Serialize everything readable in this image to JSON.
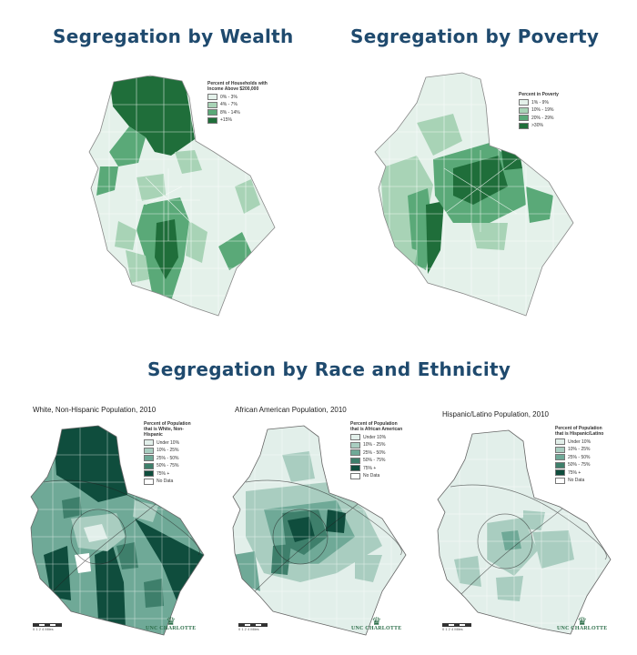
{
  "titles": {
    "wealth": "Segregation by Wealth",
    "poverty": "Segregation by Poverty",
    "race": "Segregation by Race and Ethnicity"
  },
  "colors": {
    "c1": "#e4f1ea",
    "c2": "#a8d3b6",
    "c3": "#5aa978",
    "c4": "#1f6e3a",
    "t1": "#e2efea",
    "t2": "#a9cdc0",
    "t3": "#6fa997",
    "t4": "#3e7f6b",
    "t5": "#0f4d3d",
    "nodata": "#ffffff",
    "title": "#1f4a6e",
    "logo": "#2c6e49"
  },
  "wealth_map": {
    "legend_title": "Percent of Households with Income Above $200,000",
    "legend": [
      "0% - 3%",
      "4% - 7%",
      "8% - 14%",
      "+15%"
    ]
  },
  "poverty_map": {
    "legend_title": "Percent in Poverty",
    "legend": [
      "1% - 9%",
      "10% - 19%",
      "20% - 29%",
      ">30%"
    ]
  },
  "white_map": {
    "title": "White, Non-Hispanic Population, 2010",
    "legend_title": "Percent of Population that is White, Non-Hispanic",
    "legend": [
      "Under 10%",
      "10% - 25%",
      "25% - 50%",
      "50% - 75%",
      "75% +",
      "No Data"
    ],
    "scale_label": "0  1  2      4 Miles",
    "logo": "UNC CHARLOTTE"
  },
  "black_map": {
    "title": "African American Population, 2010",
    "legend_title": "Percent of Population that is African American",
    "legend": [
      "Under 10%",
      "10% - 25%",
      "25% - 50%",
      "50% - 75%",
      "75% +",
      "No Data"
    ],
    "scale_label": "0  1  2      4 Miles",
    "logo": "UNC CHARLOTTE"
  },
  "hispanic_map": {
    "title": "Hispanic/Latino Population, 2010",
    "legend_title": "Percent of Population that is Hispanic/Latino",
    "legend": [
      "Under 10%",
      "10% - 25%",
      "25% - 50%",
      "50% - 75%",
      "75% +",
      "No Data"
    ],
    "scale_label": "0  1  2      4 Miles",
    "logo": "UNC CHARLOTTE"
  }
}
